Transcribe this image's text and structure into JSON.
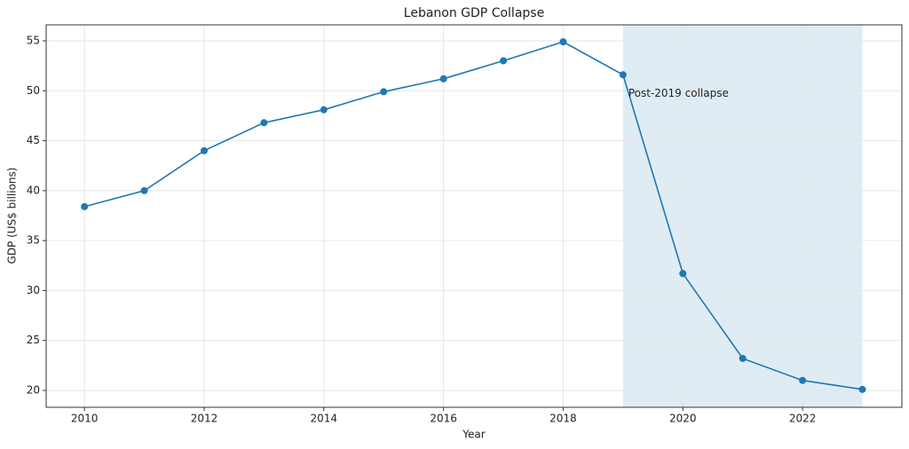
{
  "chart_data": {
    "type": "line",
    "title": "Lebanon GDP Collapse",
    "x_label": "Year",
    "y_label": "GDP (US$ billions)",
    "x": [
      2010,
      2011,
      2012,
      2013,
      2014,
      2015,
      2016,
      2017,
      2018,
      2019,
      2020,
      2021,
      2022,
      2023
    ],
    "values": [
      38.4,
      40.0,
      44.0,
      46.8,
      48.1,
      49.9,
      51.2,
      53.0,
      54.9,
      51.6,
      31.7,
      23.2,
      21.0,
      20.1
    ],
    "color": "#1f77b4",
    "xlim": [
      2009.36,
      2023.66
    ],
    "xticks": [
      2010,
      2012,
      2014,
      2016,
      2018,
      2020,
      2022
    ],
    "ylim": [
      18.31,
      56.6
    ],
    "yticks": [
      20,
      25,
      30,
      35,
      40,
      45,
      50,
      55
    ],
    "grid": true,
    "shaded_span": [
      2019,
      2023
    ],
    "shade_color": "#1f77b4",
    "annotation": "Post-2019 collapse"
  }
}
